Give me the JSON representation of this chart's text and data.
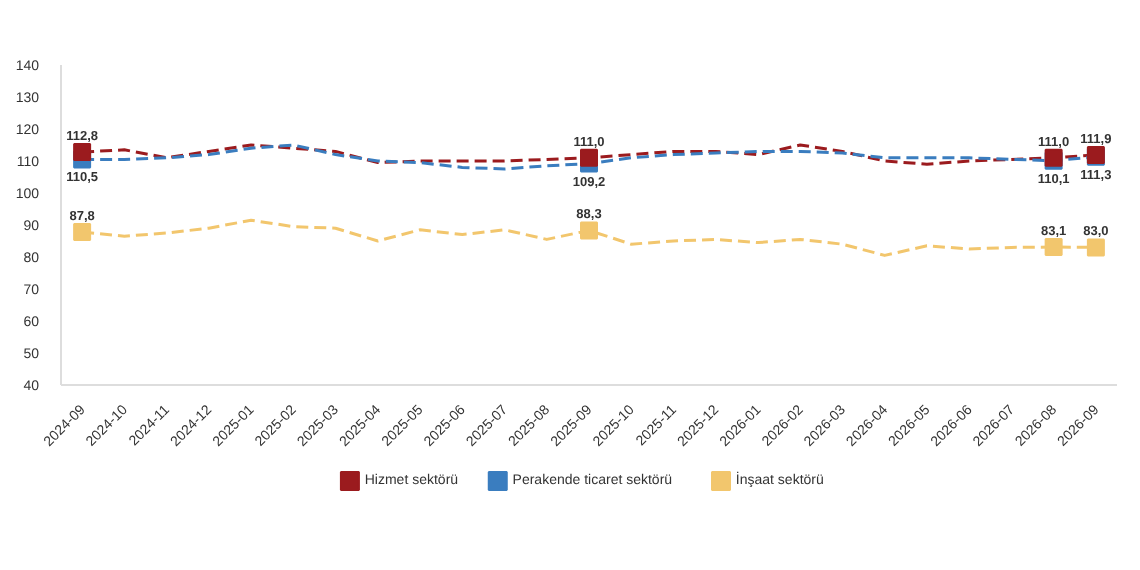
{
  "chart_data": {
    "type": "line",
    "categories": [
      "2024-09",
      "2024-10",
      "2024-11",
      "2024-12",
      "2025-01",
      "2025-02",
      "2025-03",
      "2025-04",
      "2025-05",
      "2025-06",
      "2025-07",
      "2025-08",
      "2025-09",
      "2025-10",
      "2025-11",
      "2025-12",
      "2026-01",
      "2026-02",
      "2026-03",
      "2026-04",
      "2026-05",
      "2026-06",
      "2026-07",
      "2026-08",
      "2026-09"
    ],
    "series": [
      {
        "name": "Hizmet sektörü",
        "color": "#9b1b1e",
        "values": [
          112.8,
          113.5,
          111,
          113,
          115,
          114,
          113,
          109.5,
          110,
          110,
          110,
          110.5,
          111.0,
          112,
          113,
          113,
          112,
          115,
          113,
          110,
          109,
          110,
          110.5,
          111.0,
          111.9
        ],
        "value_labels": [
          "112,8",
          null,
          null,
          null,
          null,
          null,
          null,
          null,
          null,
          null,
          null,
          null,
          "111,0",
          null,
          null,
          null,
          null,
          null,
          null,
          null,
          null,
          null,
          null,
          "111,0",
          "111,9"
        ]
      },
      {
        "name": "Perakende ticaret sektörü",
        "color": "#3a7dbf",
        "values": [
          110.5,
          110.5,
          111,
          112,
          114,
          115,
          112,
          110,
          109.5,
          108,
          107.5,
          108.5,
          109.2,
          111,
          112,
          112.5,
          113,
          113,
          112.5,
          111,
          111,
          111,
          110.5,
          110.1,
          111.3
        ],
        "value_labels": [
          "110,5",
          null,
          null,
          null,
          null,
          null,
          null,
          null,
          null,
          null,
          null,
          null,
          "109,2",
          null,
          null,
          null,
          null,
          null,
          null,
          null,
          null,
          null,
          null,
          "110,1",
          "111,3"
        ]
      },
      {
        "name": "İnşaat sektörü",
        "color": "#f2c66d",
        "values": [
          87.8,
          86.5,
          87.5,
          89,
          91.5,
          89.5,
          89,
          85,
          88.5,
          87,
          88.5,
          85.5,
          88.3,
          84,
          85,
          85.5,
          84.5,
          85.5,
          84,
          80.5,
          83.5,
          82.5,
          83,
          83.1,
          83.0
        ],
        "value_labels": [
          "87,8",
          null,
          null,
          null,
          null,
          null,
          null,
          null,
          null,
          null,
          null,
          null,
          "88,3",
          null,
          null,
          null,
          null,
          null,
          null,
          null,
          null,
          null,
          null,
          "83,1",
          "83,0"
        ]
      }
    ],
    "ylim": [
      40,
      140
    ],
    "yticks": [
      40,
      50,
      60,
      70,
      80,
      90,
      100,
      110,
      120,
      130,
      140
    ],
    "grid": false,
    "legend": "bottom",
    "line_style": "dashed"
  }
}
